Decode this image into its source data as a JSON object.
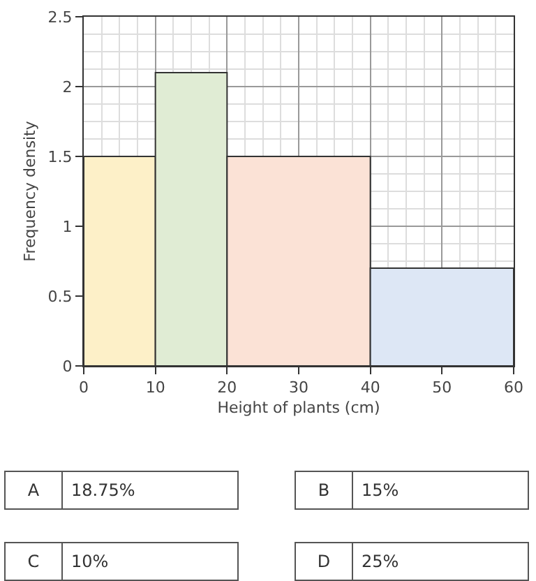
{
  "chart_data": {
    "type": "histogram",
    "xlabel": "Height of plants (cm)",
    "ylabel": "Frequency density",
    "bins": [
      0,
      10,
      20,
      40,
      60
    ],
    "values": [
      1.5,
      2.1,
      1.5,
      0.7
    ],
    "colors": [
      "#fdf0c8",
      "#e0ecd4",
      "#fbe2d6",
      "#dde7f5"
    ],
    "xlim": [
      0,
      60
    ],
    "xticks": [
      0,
      10,
      20,
      30,
      40,
      50,
      60
    ],
    "ylim": [
      0,
      2.5
    ],
    "yticks": [
      0,
      0.5,
      1,
      1.5,
      2,
      2.5
    ],
    "grid": true,
    "annotations": [
      "A",
      "18.75%",
      "B",
      "15%",
      "C",
      "10%",
      "D",
      "25%"
    ]
  }
}
